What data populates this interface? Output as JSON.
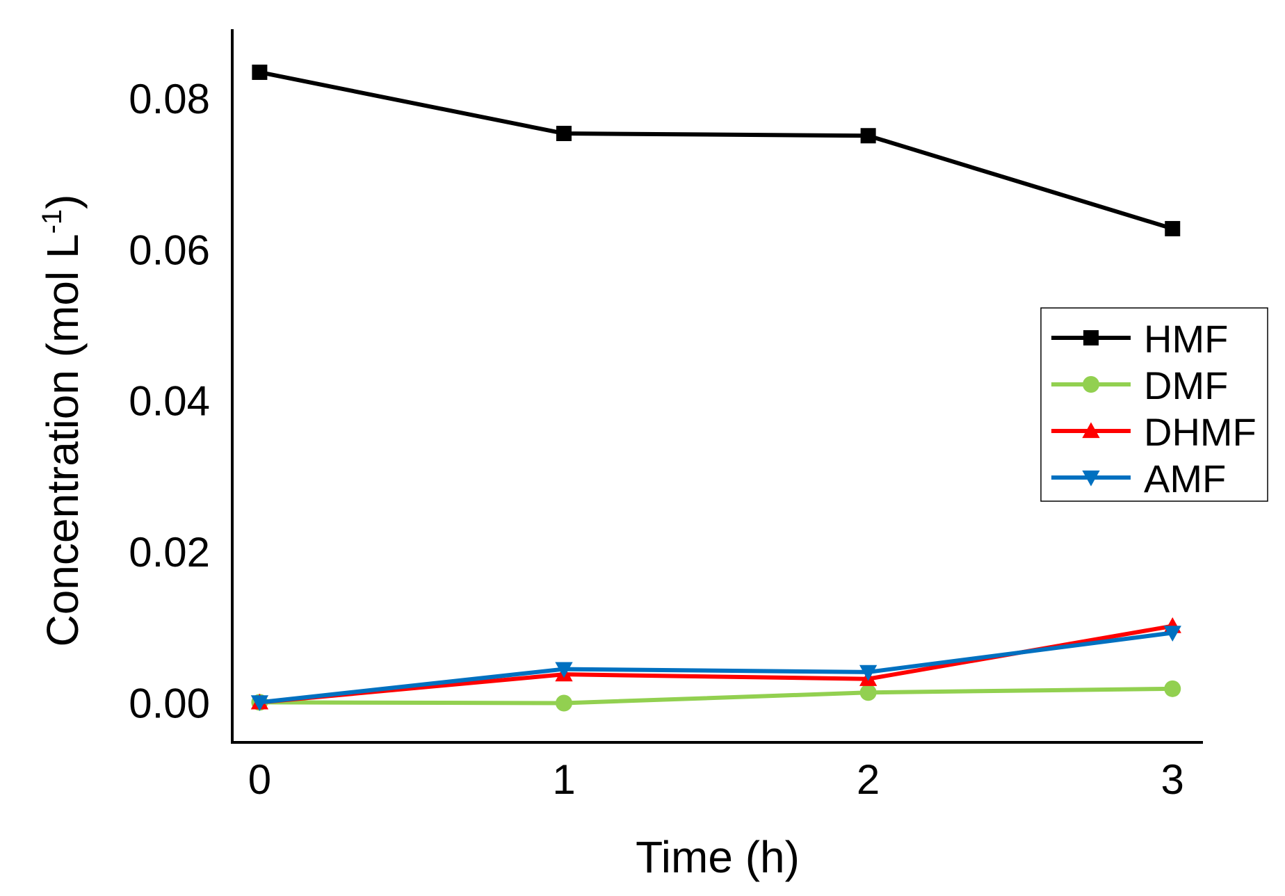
{
  "chart_data": {
    "type": "line",
    "title": "",
    "xlabel": "Time (h)",
    "ylabel": "Concentration (mol L",
    "ylabel_superscript": "-1",
    "ylabel_close": ")",
    "x": [
      0,
      1,
      2,
      3
    ],
    "x_tick_labels": [
      "0",
      "1",
      "2",
      "3"
    ],
    "xlim": [
      -0.09,
      3.1
    ],
    "ylim": [
      -0.0053,
      0.0891
    ],
    "y_ticks": [
      0.0,
      0.02,
      0.04,
      0.06,
      0.08
    ],
    "y_tick_labels": [
      "0.00",
      "0.02",
      "0.04",
      "0.06",
      "0.08"
    ],
    "grid": false,
    "legend_position": "right",
    "series": [
      {
        "name": "HMF",
        "color": "#000000",
        "marker": "square",
        "values": [
          0.0834,
          0.0753,
          0.075,
          0.0627
        ]
      },
      {
        "name": "DMF",
        "color": "#92d050",
        "marker": "circle",
        "values": [
          0.0,
          -0.0001,
          0.0013,
          0.0018
        ]
      },
      {
        "name": "DHMF",
        "color": "#ff0000",
        "marker": "triangle-up",
        "values": [
          0.0,
          0.0037,
          0.0031,
          0.0101
        ]
      },
      {
        "name": "AMF",
        "color": "#0070c0",
        "marker": "triangle-down",
        "values": [
          0.0,
          0.0044,
          0.004,
          0.0092
        ]
      }
    ]
  }
}
